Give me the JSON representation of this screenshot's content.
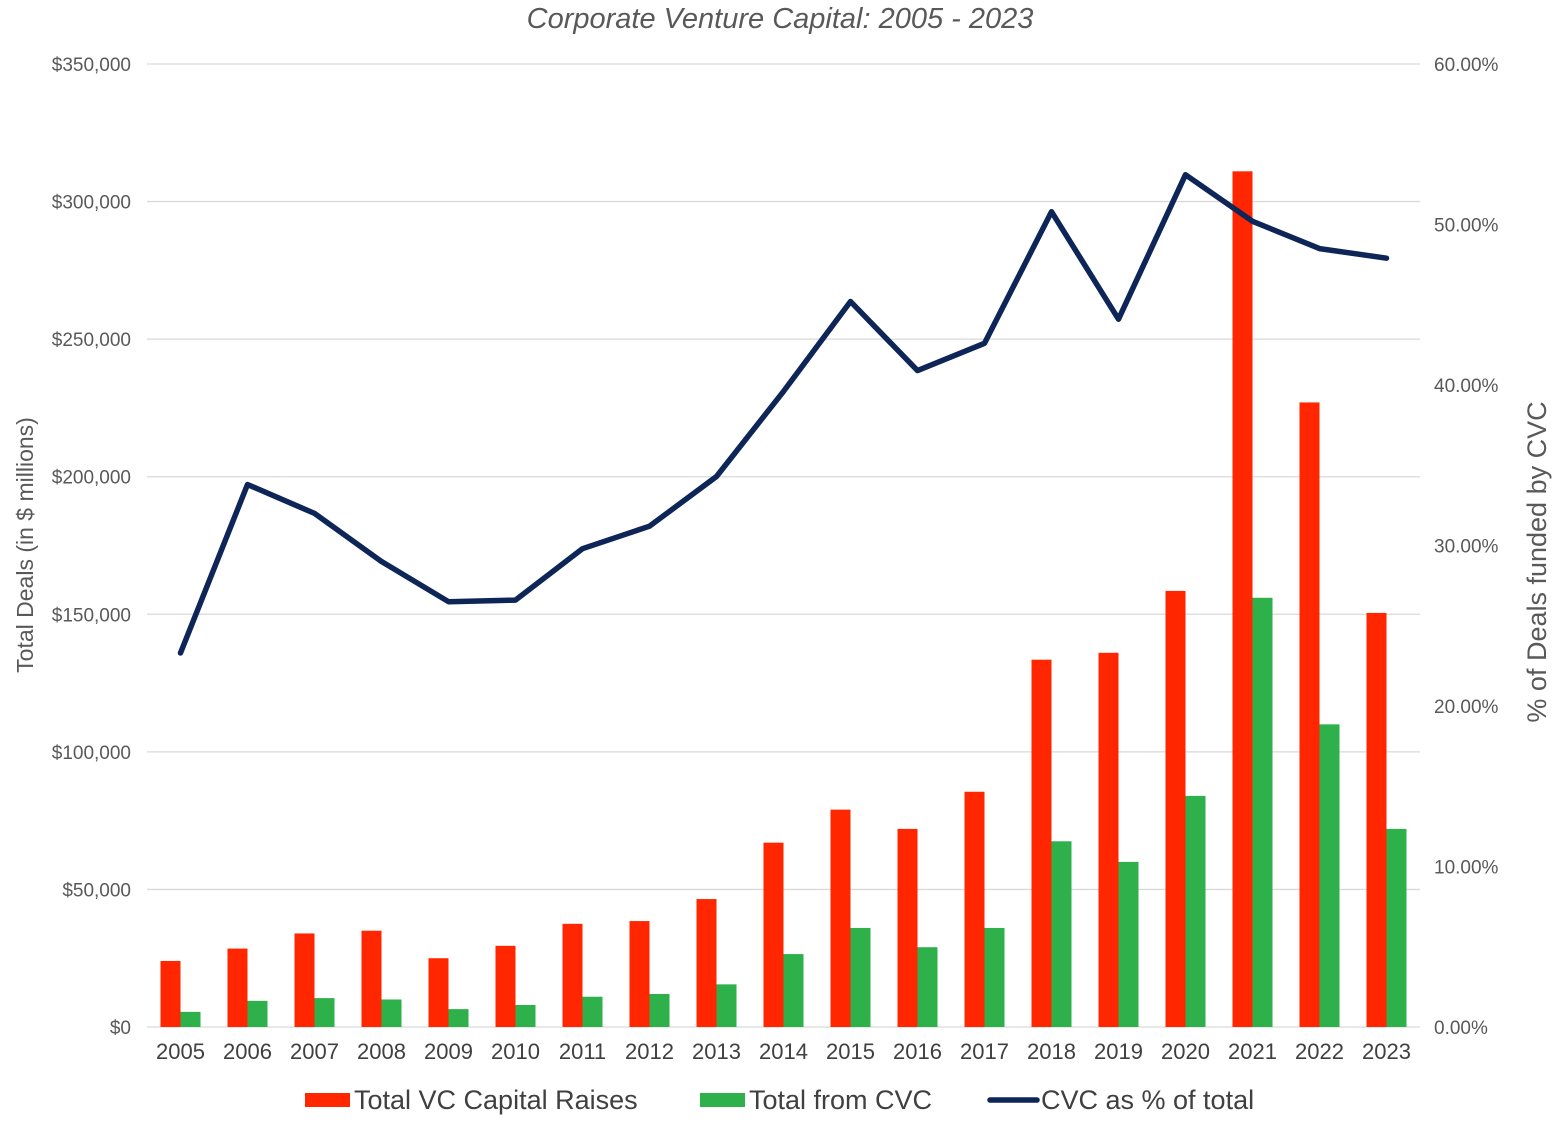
{
  "chart_data": {
    "type": "bar",
    "title": "Corporate Venture Capital: 2005 - 2023",
    "ylabel": "Total Deals (in $ millions)",
    "y2label": "% of Deals funded by CVC",
    "ylim": [
      0,
      350000
    ],
    "y2lim": [
      0,
      60
    ],
    "y_ticks": [
      "$0",
      "$50,000",
      "$100,000",
      "$150,000",
      "$200,000",
      "$250,000",
      "$300,000",
      "$350,000"
    ],
    "y2_ticks": [
      "0.00%",
      "10.00%",
      "20.00%",
      "30.00%",
      "40.00%",
      "50.00%",
      "60.00%"
    ],
    "grid": true,
    "legend_position": "bottom",
    "categories": [
      "2005",
      "2006",
      "2007",
      "2008",
      "2009",
      "2010",
      "2011",
      "2012",
      "2013",
      "2014",
      "2015",
      "2016",
      "2017",
      "2018",
      "2019",
      "2020",
      "2021",
      "2022",
      "2023"
    ],
    "series": [
      {
        "name": "Total VC Capital Raises",
        "kind": "bar",
        "axis": "left",
        "color": "#ff2600",
        "values": [
          24000,
          28500,
          34000,
          35000,
          25000,
          29500,
          37500,
          38500,
          46500,
          67000,
          79000,
          72000,
          85500,
          133500,
          136000,
          158500,
          311000,
          227000,
          150500
        ]
      },
      {
        "name": "Total from CVC",
        "kind": "bar",
        "axis": "left",
        "color": "#2eb04b",
        "values": [
          5500,
          9500,
          10500,
          10000,
          6500,
          8000,
          11000,
          12000,
          15500,
          26500,
          36000,
          29000,
          36000,
          67500,
          60000,
          84000,
          156000,
          110000,
          72000
        ]
      },
      {
        "name": "CVC as % of total",
        "kind": "line",
        "axis": "right",
        "color": "#0e2558",
        "values": [
          23.3,
          33.8,
          32.0,
          29.0,
          26.5,
          26.6,
          29.8,
          31.2,
          34.3,
          39.6,
          45.2,
          40.9,
          42.6,
          50.8,
          44.1,
          53.1,
          50.2,
          48.5,
          47.9
        ]
      }
    ]
  }
}
